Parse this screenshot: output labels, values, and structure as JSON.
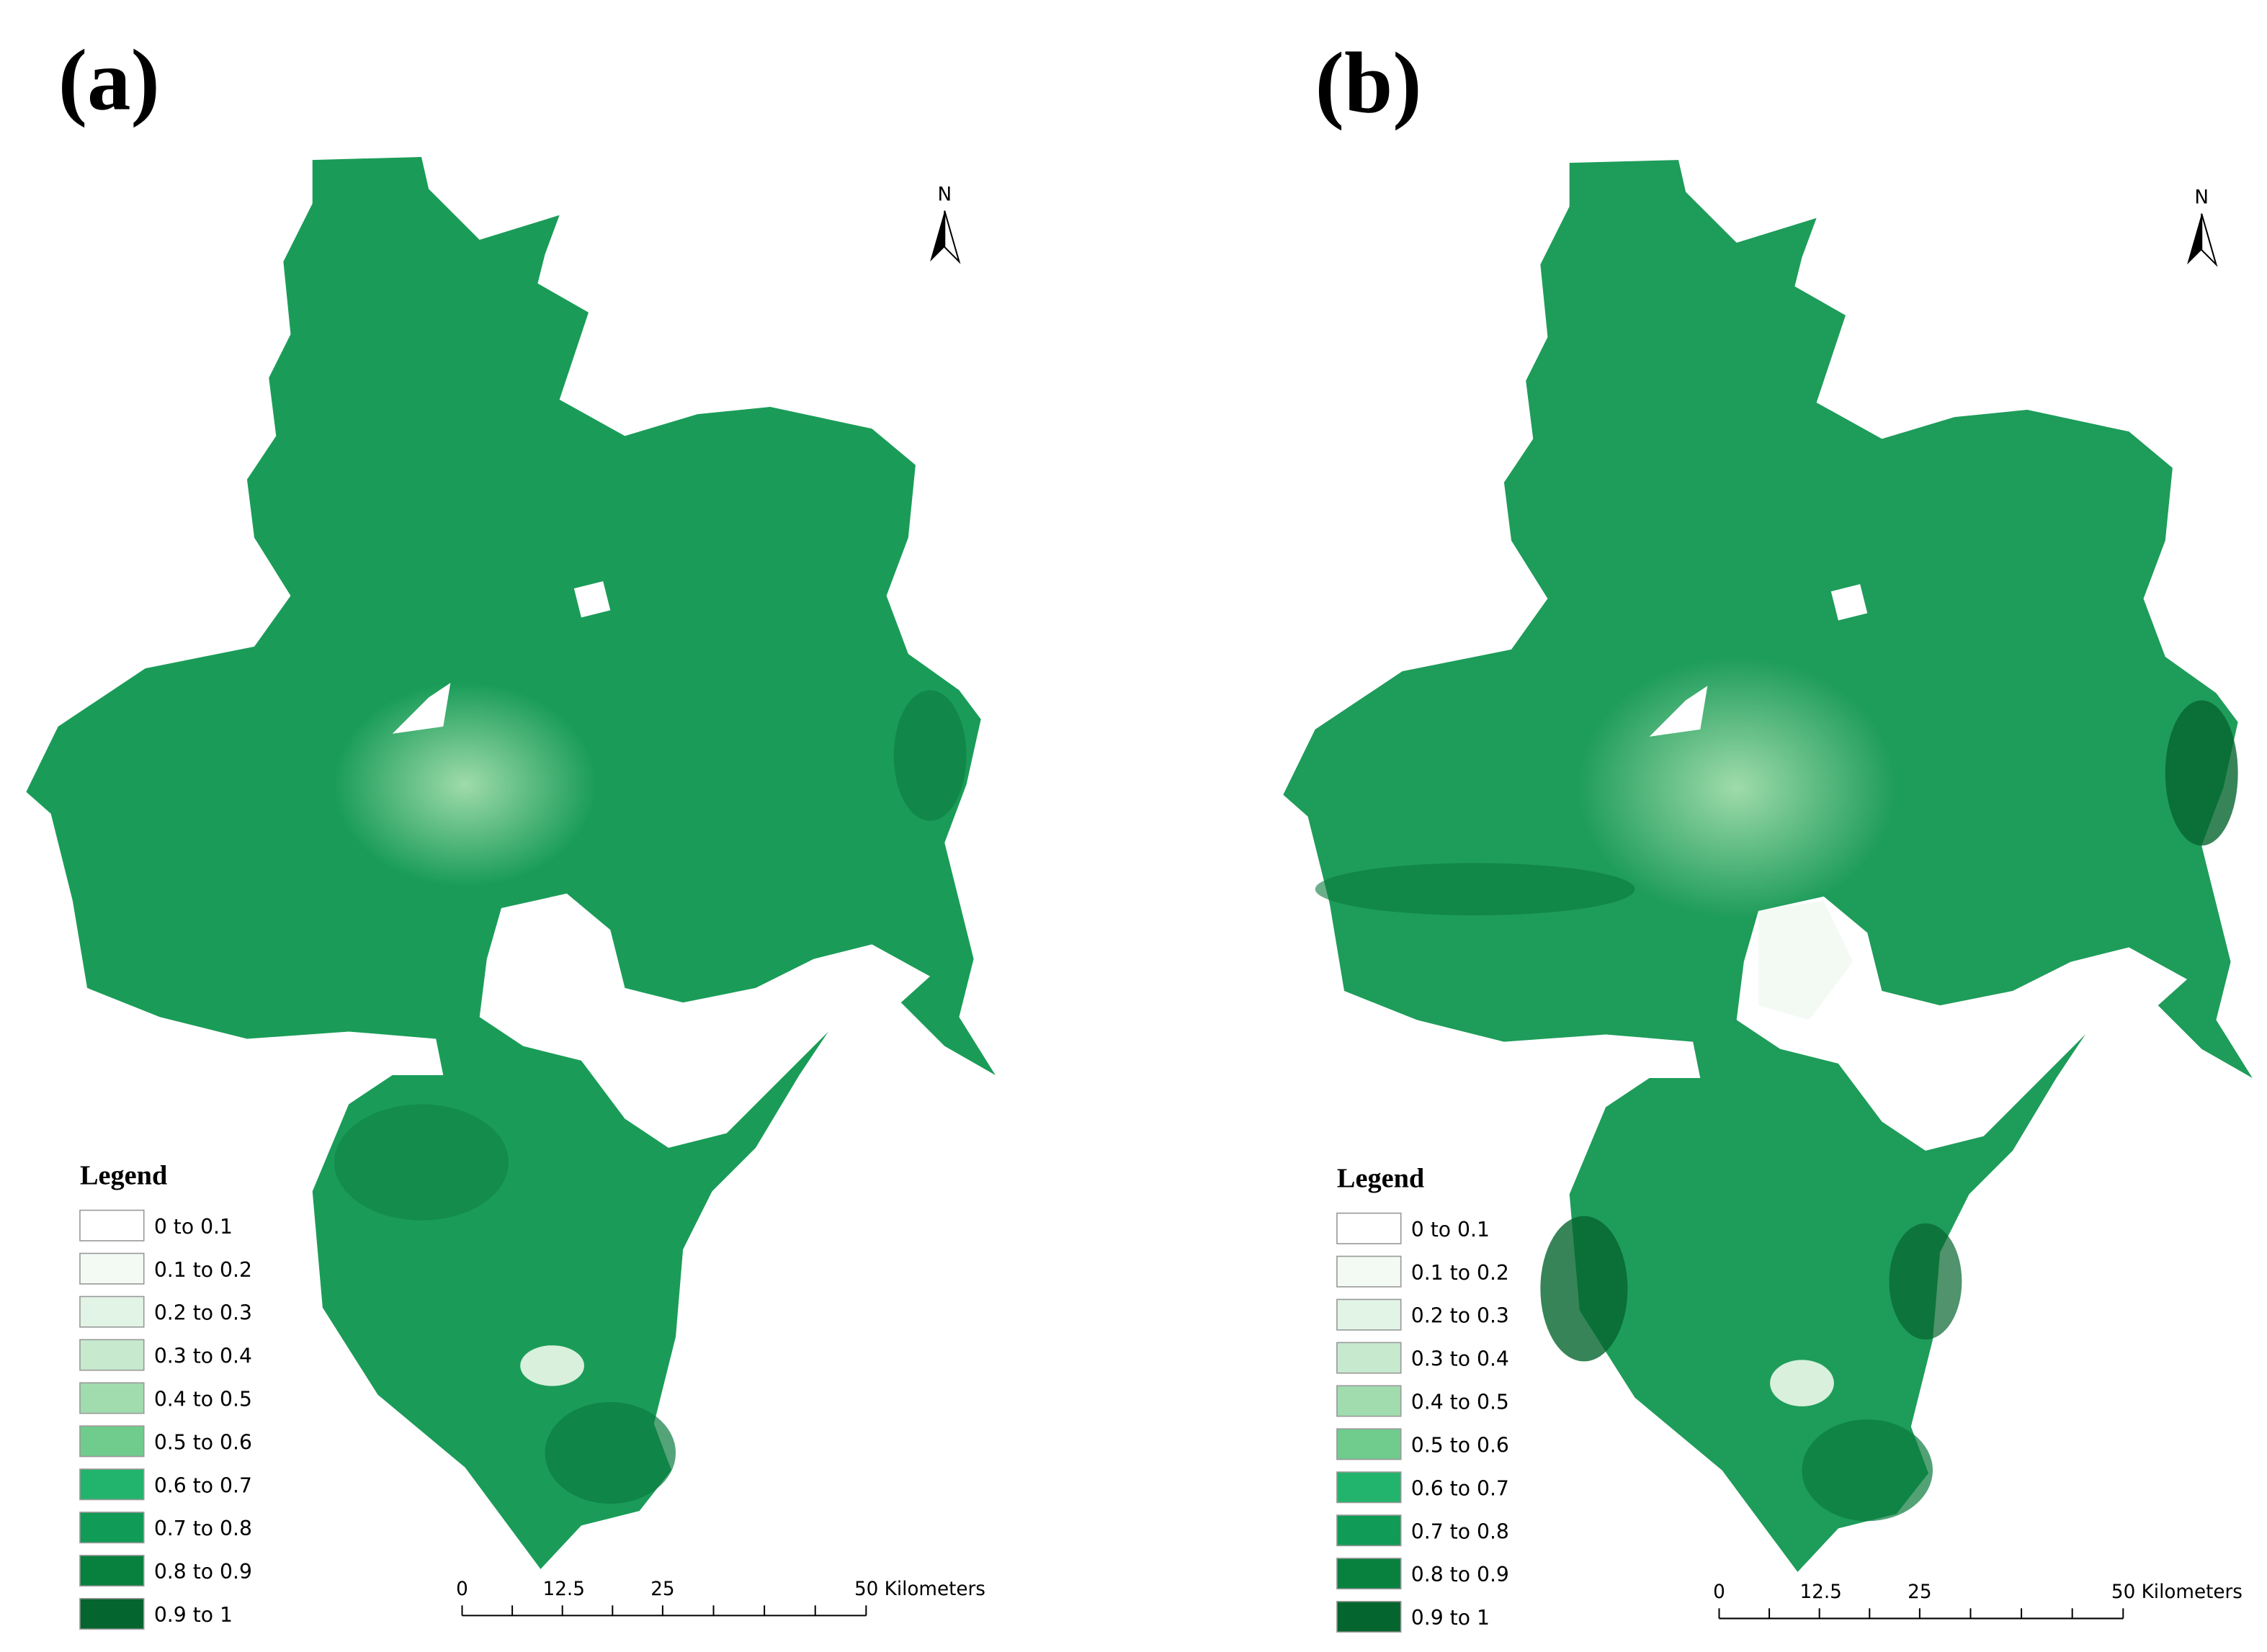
{
  "panels": [
    {
      "label": "(a)",
      "north": "N",
      "legend": {
        "title": "Legend",
        "items": [
          {
            "label": "0 to 0.1",
            "color": "#ffffff"
          },
          {
            "label": "0.1 to 0.2",
            "color": "#f3faf4"
          },
          {
            "label": "0.2 to 0.3",
            "color": "#e1f4e5"
          },
          {
            "label": "0.3 to 0.4",
            "color": "#c7eacf"
          },
          {
            "label": "0.4 to 0.5",
            "color": "#a1dcae"
          },
          {
            "label": "0.5 to 0.6",
            "color": "#6fcc8c"
          },
          {
            "label": "0.6 to 0.7",
            "color": "#22b46c"
          },
          {
            "label": "0.7 to 0.8",
            "color": "#109b56"
          },
          {
            "label": "0.8 to 0.9",
            "color": "#08813f"
          },
          {
            "label": "0.9 to 1",
            "color": "#05652e"
          }
        ]
      },
      "scale_bar": [
        "0",
        "12.5",
        "25",
        "50 Kilometers"
      ]
    },
    {
      "label": "(b)",
      "north": "N",
      "legend": {
        "title": "Legend",
        "items": [
          {
            "label": "0 to 0.1",
            "color": "#ffffff"
          },
          {
            "label": "0.1 to 0.2",
            "color": "#f3faf4"
          },
          {
            "label": "0.2 to 0.3",
            "color": "#e1f4e5"
          },
          {
            "label": "0.3 to 0.4",
            "color": "#c7eacf"
          },
          {
            "label": "0.4 to 0.5",
            "color": "#a1dcae"
          },
          {
            "label": "0.5 to 0.6",
            "color": "#6fcc8c"
          },
          {
            "label": "0.6 to 0.7",
            "color": "#22b46c"
          },
          {
            "label": "0.7 to 0.8",
            "color": "#109b56"
          },
          {
            "label": "0.8 to 0.9",
            "color": "#08813f"
          },
          {
            "label": "0.9 to 1",
            "color": "#05652e"
          }
        ]
      },
      "scale_bar": [
        "0",
        "12.5",
        "25",
        "50 Kilometers"
      ]
    }
  ]
}
